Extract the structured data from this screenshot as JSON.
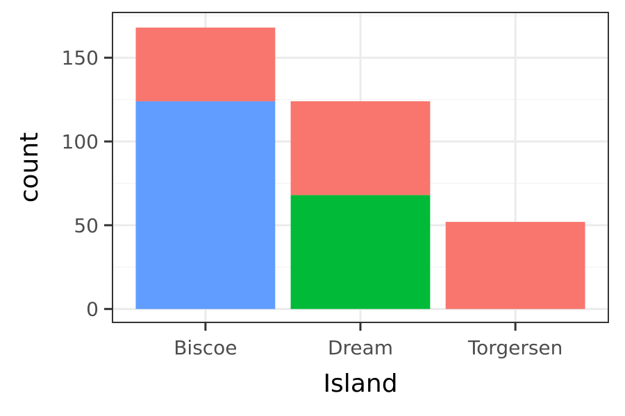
{
  "chart_data": {
    "type": "bar",
    "stacked": true,
    "categories": [
      "Biscoe",
      "Dream",
      "Torgersen"
    ],
    "series": [
      {
        "color": "#F8766D",
        "values": [
          44,
          56,
          52
        ]
      },
      {
        "color": "#00BA38",
        "values": [
          0,
          68,
          0
        ]
      },
      {
        "color": "#619CFF",
        "values": [
          124,
          0,
          0
        ]
      }
    ],
    "xlabel": "Island",
    "ylabel": "count",
    "ylim": [
      -8,
      177
    ],
    "yticks": [
      0,
      50,
      100,
      150
    ],
    "grid": true,
    "legend": "none"
  },
  "colors": {
    "panel_border": "#333333",
    "grid_major": "#ebebeb",
    "grid_minor": "#f5f5f5",
    "tick_mark": "#333333"
  }
}
